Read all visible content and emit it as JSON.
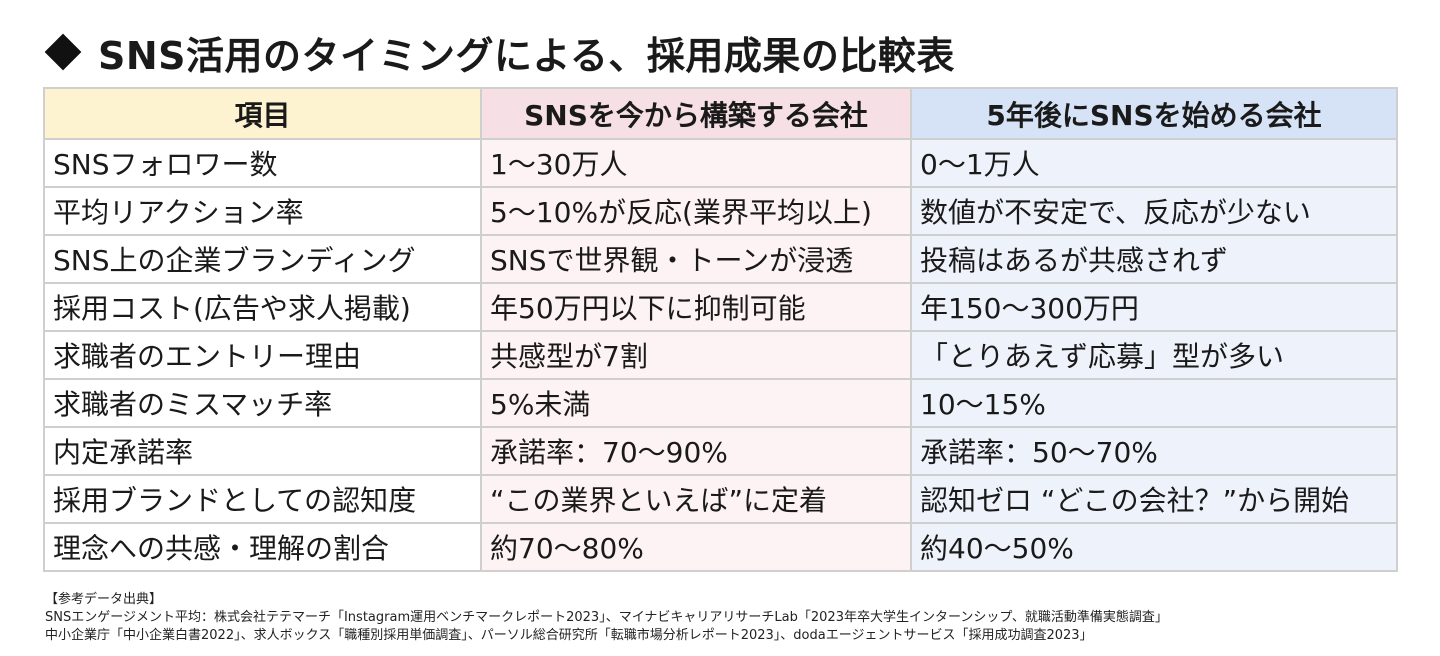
{
  "title": "SNS活用のタイミングによる、採用成果の比較表",
  "table": {
    "headers": [
      "項目",
      "SNSを今から構築する会社",
      "5年後にSNSを始める会社"
    ],
    "header_colors": [
      "#fdf3d0",
      "#f6dfe5",
      "#d6e3f7"
    ],
    "rows": [
      [
        "SNSフォロワー数",
        "1〜30万人",
        "0〜1万人"
      ],
      [
        "平均リアクション率",
        "5〜10%が反応(業界平均以上)",
        "数値が不安定で、反応が少ない"
      ],
      [
        "SNS上の企業ブランディング",
        "SNSで世界観・トーンが浸透",
        "投稿はあるが共感されず"
      ],
      [
        "採用コスト(広告や求人掲載)",
        "年50万円以下に抑制可能",
        "年150〜300万円"
      ],
      [
        "求職者のエントリー理由",
        "共感型が7割",
        "「とりあえず応募」型が多い"
      ],
      [
        "求職者のミスマッチ率",
        "5%未満",
        "10〜15%"
      ],
      [
        "内定承諾率",
        "承諾率：70〜90%",
        "承諾率：50〜70%"
      ],
      [
        "採用ブランドとしての認知度",
        "“この業界といえば”に定着",
        "認知ゼロ “どこの会社？”から開始"
      ],
      [
        "理念への共感・理解の割合",
        "約70〜80%",
        "約40〜50%"
      ]
    ]
  },
  "sources": {
    "heading": "【参考データ出典】",
    "lines": [
      "SNSエンゲージメント平均：株式会社テテマーチ「Instagram運用ベンチマークレポート2023」、マイナビキャリアリサーチLab「2023年卒大学生インターンシップ、就職活動準備実態調査」",
      "中小企業庁「中小企業白書2022」、求人ボックス「職種別採用単価調査」、パーソル総合研究所「転職市場分析レポート2023」、dodaエージェントサービス「採用成功調査2023」"
    ]
  }
}
